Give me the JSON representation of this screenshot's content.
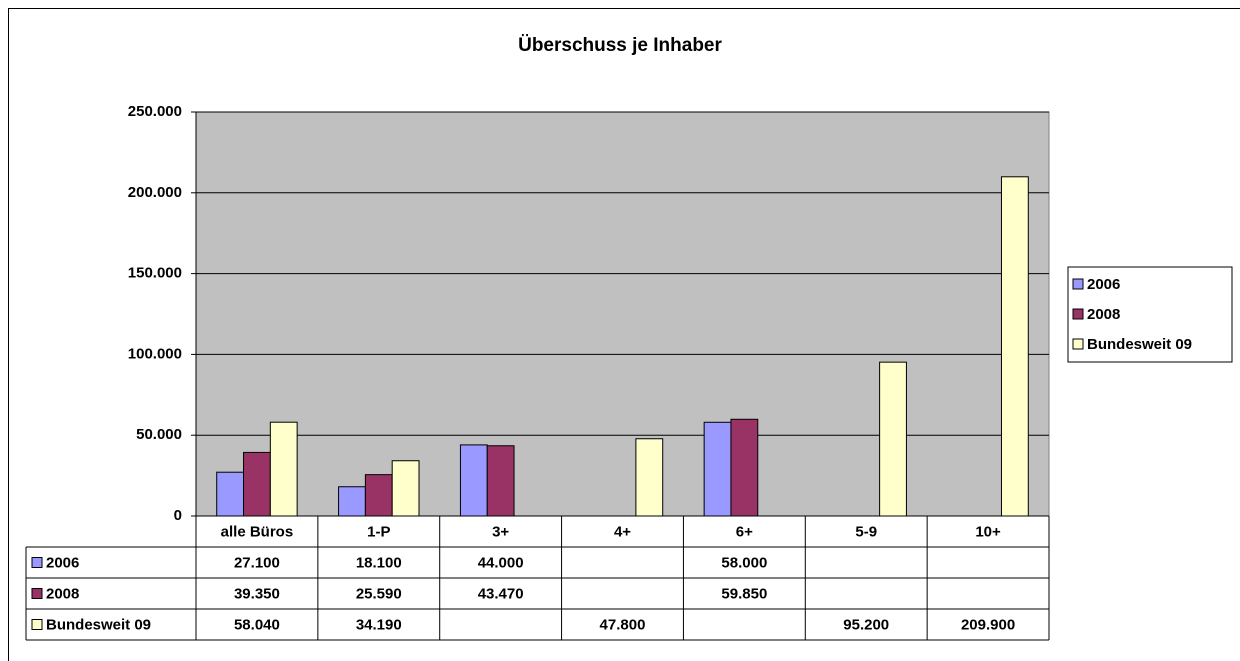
{
  "chart_data": {
    "type": "bar",
    "title": "Überschuss je Inhaber",
    "categories": [
      "alle Büros",
      "1-P",
      "3+",
      "4+",
      "6+",
      "5-9",
      "10+"
    ],
    "series": [
      {
        "name": "2006",
        "color": "#9999ff",
        "values": [
          27100,
          18100,
          44000,
          null,
          58000,
          null,
          null
        ],
        "value_labels": [
          "27.100",
          "18.100",
          "44.000",
          null,
          "58.000",
          null,
          null
        ]
      },
      {
        "name": "2008",
        "color": "#993366",
        "values": [
          39350,
          25590,
          43470,
          null,
          59850,
          null,
          null
        ],
        "value_labels": [
          "39.350",
          "25.590",
          "43.470",
          null,
          "59.850",
          null,
          null
        ]
      },
      {
        "name": "Bundesweit 09",
        "color": "#ffffcc",
        "values": [
          58040,
          34190,
          null,
          47800,
          null,
          95200,
          209900
        ],
        "value_labels": [
          "58.040",
          "34.190",
          null,
          "47.800",
          null,
          "95.200",
          "209.900"
        ]
      }
    ],
    "ylim": [
      0,
      250000
    ],
    "yticks": [
      0,
      {
        "value": 50000,
        "label": "50.000"
      },
      {
        "value": 100000,
        "label": "100.000"
      },
      {
        "value": 150000,
        "label": "150.000"
      },
      {
        "value": 200000,
        "label": "200.000"
      },
      {
        "value": 250000,
        "label": "250.000"
      }
    ],
    "grid": true,
    "legend": "right",
    "plot_background": "#c0c0c0"
  }
}
